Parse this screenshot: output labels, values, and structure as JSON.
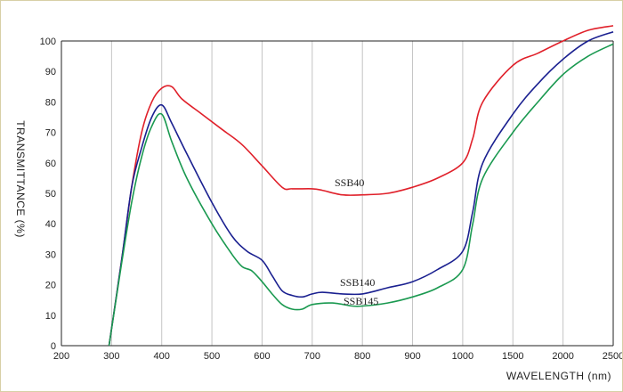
{
  "chart_data": {
    "type": "line",
    "title": "",
    "xlabel": "WAVELENGTH (nm)",
    "ylabel": "TRANSMITTANCE  (%)",
    "x_ticks": [
      "200",
      "300",
      "400",
      "500",
      "600",
      "700",
      "800",
      "900",
      "1000",
      "1500",
      "2000",
      "2500"
    ],
    "y_ticks": [
      "0",
      "10",
      "20",
      "30",
      "40",
      "50",
      "60",
      "70",
      "80",
      "90",
      "100"
    ],
    "ylim": [
      0,
      100
    ],
    "x_scale": "piecewise: linear 200-1000 nm, then 500 nm per division to 2500 nm",
    "grid": "vertical gridlines only",
    "series": [
      {
        "name": "SSB40",
        "color": "#e0202a",
        "points": [
          [
            295,
            0
          ],
          [
            320,
            28
          ],
          [
            340,
            52
          ],
          [
            360,
            70
          ],
          [
            380,
            80
          ],
          [
            400,
            84.5
          ],
          [
            420,
            85
          ],
          [
            440,
            81
          ],
          [
            480,
            76
          ],
          [
            520,
            71
          ],
          [
            560,
            66
          ],
          [
            600,
            59
          ],
          [
            640,
            52
          ],
          [
            660,
            51.5
          ],
          [
            700,
            51.5
          ],
          [
            720,
            51
          ],
          [
            760,
            49.5
          ],
          [
            800,
            49.5
          ],
          [
            850,
            50
          ],
          [
            900,
            52
          ],
          [
            950,
            55
          ],
          [
            1000,
            60
          ],
          [
            1100,
            68
          ],
          [
            1200,
            80
          ],
          [
            1500,
            92
          ],
          [
            1750,
            96
          ],
          [
            2000,
            100
          ],
          [
            2250,
            103.5
          ],
          [
            2500,
            105
          ]
        ]
      },
      {
        "name": "SSB140",
        "color": "#1a2090",
        "points": [
          [
            295,
            0
          ],
          [
            320,
            28
          ],
          [
            340,
            52
          ],
          [
            360,
            65
          ],
          [
            380,
            75
          ],
          [
            400,
            79
          ],
          [
            420,
            73
          ],
          [
            450,
            63
          ],
          [
            500,
            47
          ],
          [
            540,
            36
          ],
          [
            570,
            31
          ],
          [
            600,
            28
          ],
          [
            620,
            23
          ],
          [
            640,
            18
          ],
          [
            660,
            16.5
          ],
          [
            680,
            16
          ],
          [
            700,
            17
          ],
          [
            720,
            17.5
          ],
          [
            760,
            17
          ],
          [
            800,
            17
          ],
          [
            850,
            19
          ],
          [
            900,
            21
          ],
          [
            950,
            25
          ],
          [
            1000,
            31
          ],
          [
            1100,
            44
          ],
          [
            1200,
            60
          ],
          [
            1500,
            76
          ],
          [
            1750,
            86
          ],
          [
            2000,
            94
          ],
          [
            2250,
            100
          ],
          [
            2500,
            103
          ]
        ]
      },
      {
        "name": "SSB145",
        "color": "#1a9950",
        "points": [
          [
            295,
            0
          ],
          [
            320,
            27
          ],
          [
            340,
            47
          ],
          [
            360,
            62
          ],
          [
            380,
            72
          ],
          [
            400,
            76
          ],
          [
            420,
            67
          ],
          [
            450,
            55
          ],
          [
            500,
            40
          ],
          [
            540,
            30
          ],
          [
            560,
            26
          ],
          [
            580,
            24.5
          ],
          [
            600,
            21
          ],
          [
            620,
            17
          ],
          [
            640,
            13.5
          ],
          [
            660,
            12
          ],
          [
            680,
            12
          ],
          [
            700,
            13.5
          ],
          [
            740,
            14
          ],
          [
            780,
            13
          ],
          [
            800,
            13
          ],
          [
            850,
            14
          ],
          [
            900,
            16
          ],
          [
            950,
            19
          ],
          [
            1000,
            25
          ],
          [
            1100,
            40
          ],
          [
            1200,
            55
          ],
          [
            1500,
            70
          ],
          [
            1750,
            80
          ],
          [
            2000,
            89
          ],
          [
            2250,
            95
          ],
          [
            2500,
            99
          ]
        ]
      }
    ],
    "annotations": [
      "SSB40",
      "SSB140",
      "SSB145"
    ]
  }
}
